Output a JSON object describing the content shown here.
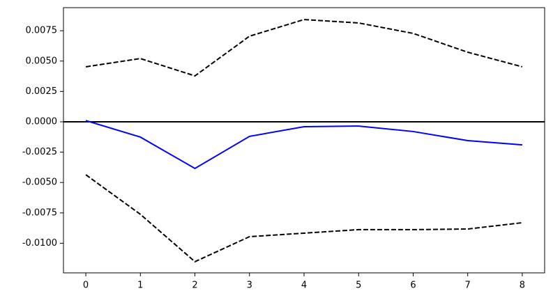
{
  "chart_data": {
    "type": "line",
    "x": [
      0,
      1,
      2,
      3,
      4,
      5,
      6,
      7,
      8
    ],
    "series": [
      {
        "color": "#0000ff",
        "dash": false,
        "values": [
          0.0001,
          -0.00126,
          -0.00384,
          -0.0012,
          -0.0004,
          -0.00035,
          -0.0008,
          -0.00155,
          -0.0019
        ]
      },
      {
        "color": "#000000",
        "dash": true,
        "values": [
          0.00453,
          0.00521,
          0.00378,
          0.00705,
          0.00842,
          0.00814,
          0.00728,
          0.00573,
          0.00453
        ]
      },
      {
        "color": "#000000",
        "dash": true,
        "values": [
          -0.00436,
          -0.00762,
          -0.01152,
          -0.00946,
          -0.00917,
          -0.00888,
          -0.00888,
          -0.00883,
          -0.00831
        ]
      }
    ],
    "hline": 0,
    "xlim": [
      -0.41,
      8.41
    ],
    "xticks": [
      0,
      1,
      2,
      3,
      4,
      5,
      6,
      7,
      8
    ],
    "ylim": [
      -0.01244,
      0.0094
    ],
    "yticks": [
      {
        "value": 0.0075,
        "label": "0.0075"
      },
      {
        "value": 0.005,
        "label": "0.0050"
      },
      {
        "value": 0.0025,
        "label": "0.0025"
      },
      {
        "value": 0,
        "label": "0.0000"
      },
      {
        "value": -0.0025,
        "label": "-0.0025"
      },
      {
        "value": -0.005,
        "label": "-0.0050"
      },
      {
        "value": -0.0075,
        "label": "-0.0075"
      },
      {
        "value": -0.01,
        "label": "-0.0100"
      }
    ],
    "grid": false
  }
}
